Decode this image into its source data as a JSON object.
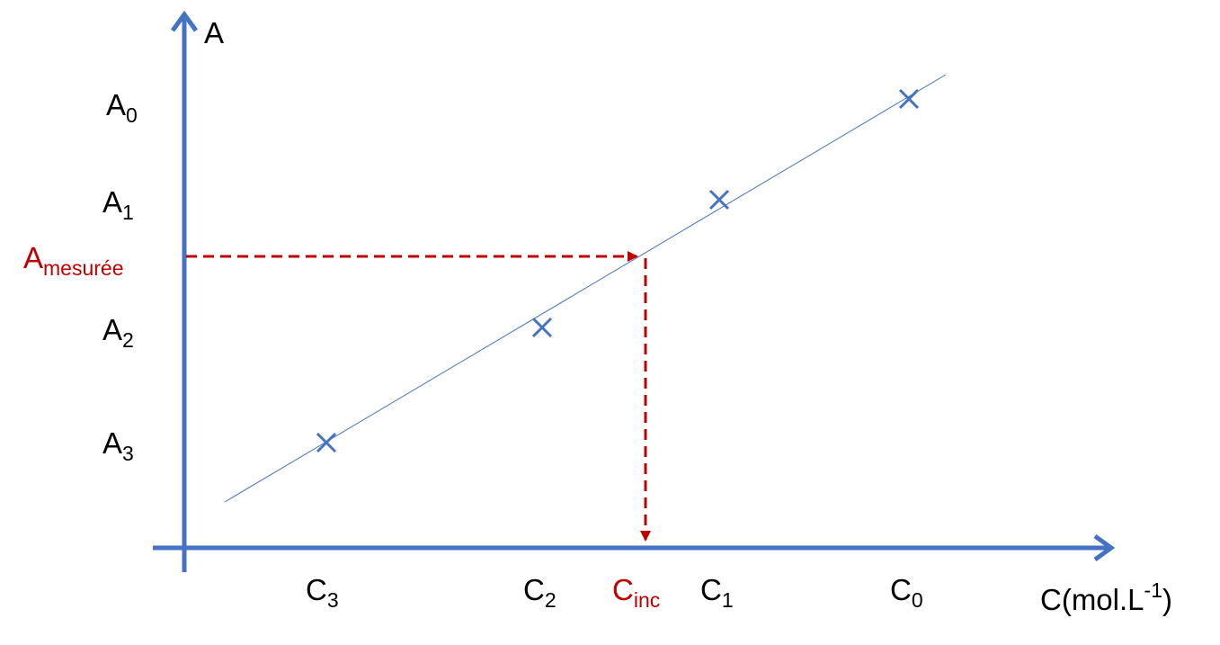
{
  "y_axis": {
    "label": "A"
  },
  "x_axis": {
    "label": "C(mol.L",
    "label_sup": "-1",
    "label_end": ")"
  },
  "y_labels": [
    {
      "base": "A",
      "sub": "0"
    },
    {
      "base": "A",
      "sub": "1"
    },
    {
      "base": "A",
      "sub": "2"
    },
    {
      "base": "A",
      "sub": "3"
    }
  ],
  "x_labels": [
    {
      "base": "C",
      "sub": "3"
    },
    {
      "base": "C",
      "sub": "2"
    },
    {
      "base": "C",
      "sub": "1"
    },
    {
      "base": "C",
      "sub": "0"
    }
  ],
  "measured": {
    "base": "A",
    "sub": "mesurée"
  },
  "unknown": {
    "base": "C",
    "sub": "inc"
  }
}
